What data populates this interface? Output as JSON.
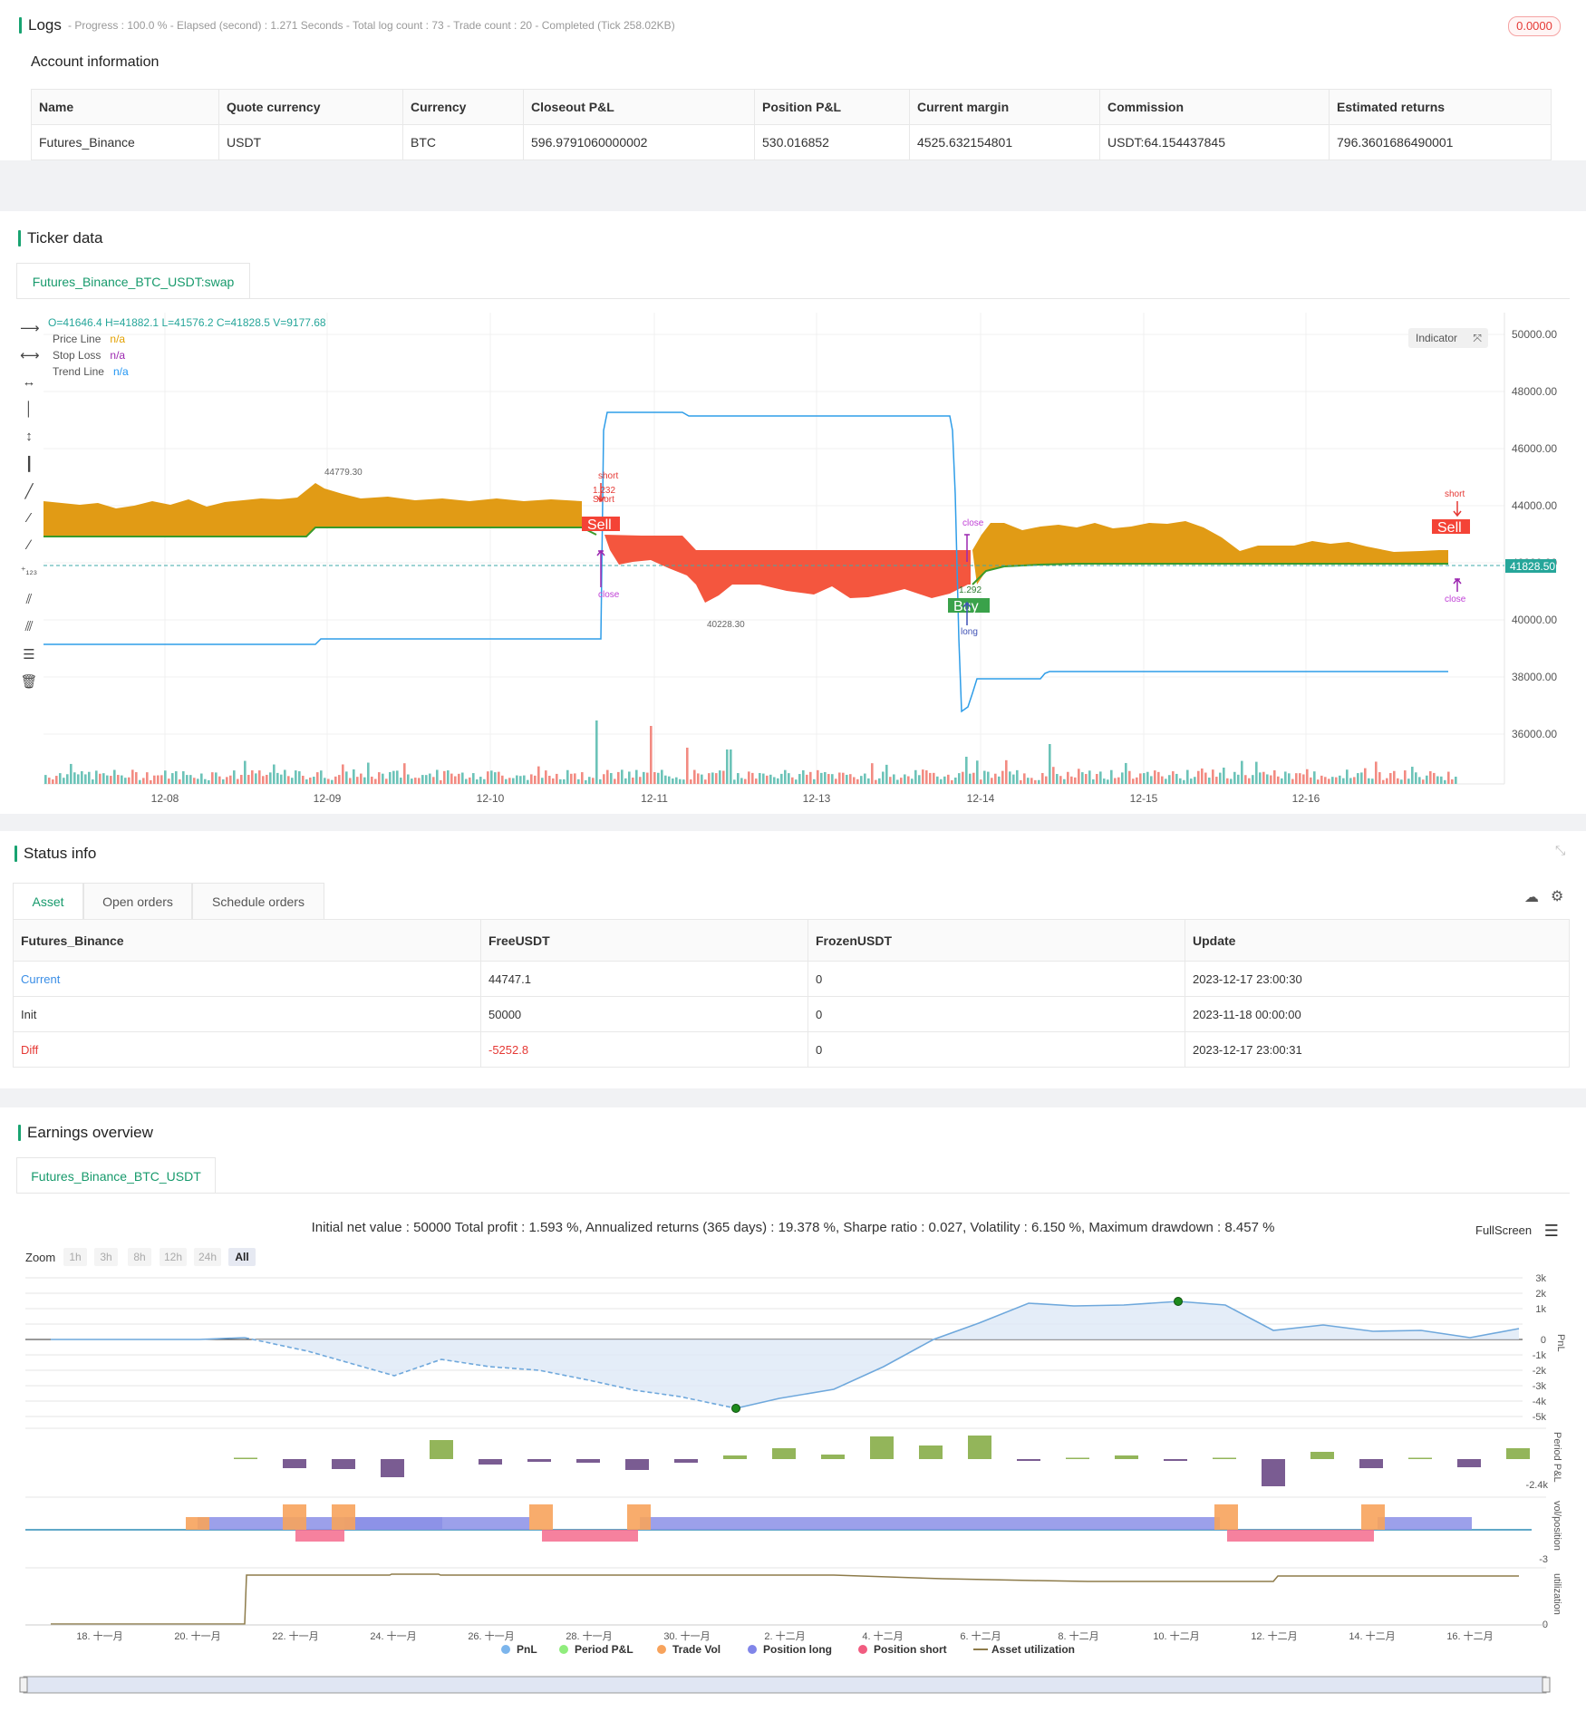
{
  "logs": {
    "title": "Logs",
    "status": "- Progress : 100.0 % - Elapsed (second) : 1.271  Seconds - Total log count : 73 - Trade count : 20 - Completed (Tick 258.02KB)",
    "badge": "0.0000"
  },
  "account": {
    "title": "Account information",
    "columns": [
      "Name",
      "Quote currency",
      "Currency",
      "Closeout P&L",
      "Position P&L",
      "Current margin",
      "Commission",
      "Estimated returns"
    ],
    "row": [
      "Futures_Binance",
      "USDT",
      "BTC",
      "596.9791060000002",
      "530.016852",
      "4525.632154801",
      "USDT:64.154437845",
      "796.3601686490001"
    ]
  },
  "ticker": {
    "title": "Ticker data",
    "tab": "Futures_Binance_BTC_USDT:swap",
    "ohlc": "O=41646.4 H=41882.1 L=41576.2 C=41828.5 V=9177.68",
    "legend": [
      {
        "name": "Price Line",
        "value": "n/a",
        "color": "#e2a000"
      },
      {
        "name": "Stop Loss",
        "value": "n/a",
        "color": "#9c27b0"
      },
      {
        "name": "Trend Line",
        "value": "n/a",
        "color": "#2196f3"
      }
    ],
    "indicator_btn": "Indicator",
    "price_label": "41828.50",
    "y_ticks": [
      "50000.00",
      "48000.00",
      "46000.00",
      "44000.00",
      "42000.00",
      "40000.00",
      "38000.00",
      "36000.00"
    ],
    "x_ticks": [
      "12-08",
      "12-09",
      "12-10",
      "12-11",
      "12-13",
      "12-14",
      "12-15",
      "12-16"
    ],
    "annotations": {
      "high": "44779.30",
      "low": "40228.30",
      "short1": "short",
      "short1_qty": "1.232",
      "short1_word": "Short",
      "sell1": "Sell",
      "close1": "close",
      "close2": "close",
      "buy": "Buy",
      "long": "long",
      "long_qty": "1.292",
      "short2": "short",
      "sell2": "Sell",
      "close3": "close"
    }
  },
  "status": {
    "title": "Status info",
    "tabs": [
      "Asset",
      "Open orders",
      "Schedule orders"
    ],
    "columns": [
      "Futures_Binance",
      "FreeUSDT",
      "FrozenUSDT",
      "Update"
    ],
    "rows": [
      {
        "label": "Current",
        "free": "44747.1",
        "frozen": "0",
        "update": "2023-12-17 23:00:30"
      },
      {
        "label": "Init",
        "free": "50000",
        "frozen": "0",
        "update": "2023-11-18 00:00:00"
      },
      {
        "label": "Diff",
        "free": "-5252.8",
        "frozen": "0",
        "update": "2023-12-17 23:00:31"
      }
    ]
  },
  "earnings": {
    "title": "Earnings overview",
    "tab": "Futures_Binance_BTC_USDT",
    "summary": "Initial net value : 50000  Total profit : 1.593 %, Annualized returns (365 days) : 19.378 %, Sharpe ratio : 0.027, Volatility : 6.150 %, Maximum drawdown : 8.457 %",
    "fullscreen": "FullScreen",
    "zoom_label": "Zoom",
    "zoom_buttons": [
      "1h",
      "3h",
      "8h",
      "12h",
      "24h",
      "All"
    ],
    "pnl_ticks": [
      "3k",
      "2k",
      "1k",
      "0",
      "-1k",
      "-2k",
      "-3k",
      "-4k",
      "-5k"
    ],
    "period_tick": "-2.4k",
    "vol_tick": "-3",
    "util_tick": "0",
    "axis_titles": [
      "PnL",
      "Period P&L",
      "vol/position",
      "utilization"
    ],
    "x_ticks": [
      "18. 十一月",
      "20. 十一月",
      "22. 十一月",
      "24. 十一月",
      "26. 十一月",
      "28. 十一月",
      "30. 十一月",
      "2. 十二月",
      "4. 十二月",
      "6. 十二月",
      "8. 十二月",
      "10. 十二月",
      "12. 十二月",
      "14. 十二月",
      "16. 十二月"
    ],
    "legend": [
      {
        "name": "PnL",
        "color": "#7cb5ec"
      },
      {
        "name": "Period P&L",
        "color": "#90ed7d"
      },
      {
        "name": "Trade Vol",
        "color": "#f7a35c"
      },
      {
        "name": "Position long",
        "color": "#8085e9"
      },
      {
        "name": "Position short",
        "color": "#f15c80"
      },
      {
        "name": "Asset utilization",
        "color": "#8d7b4a"
      }
    ]
  }
}
